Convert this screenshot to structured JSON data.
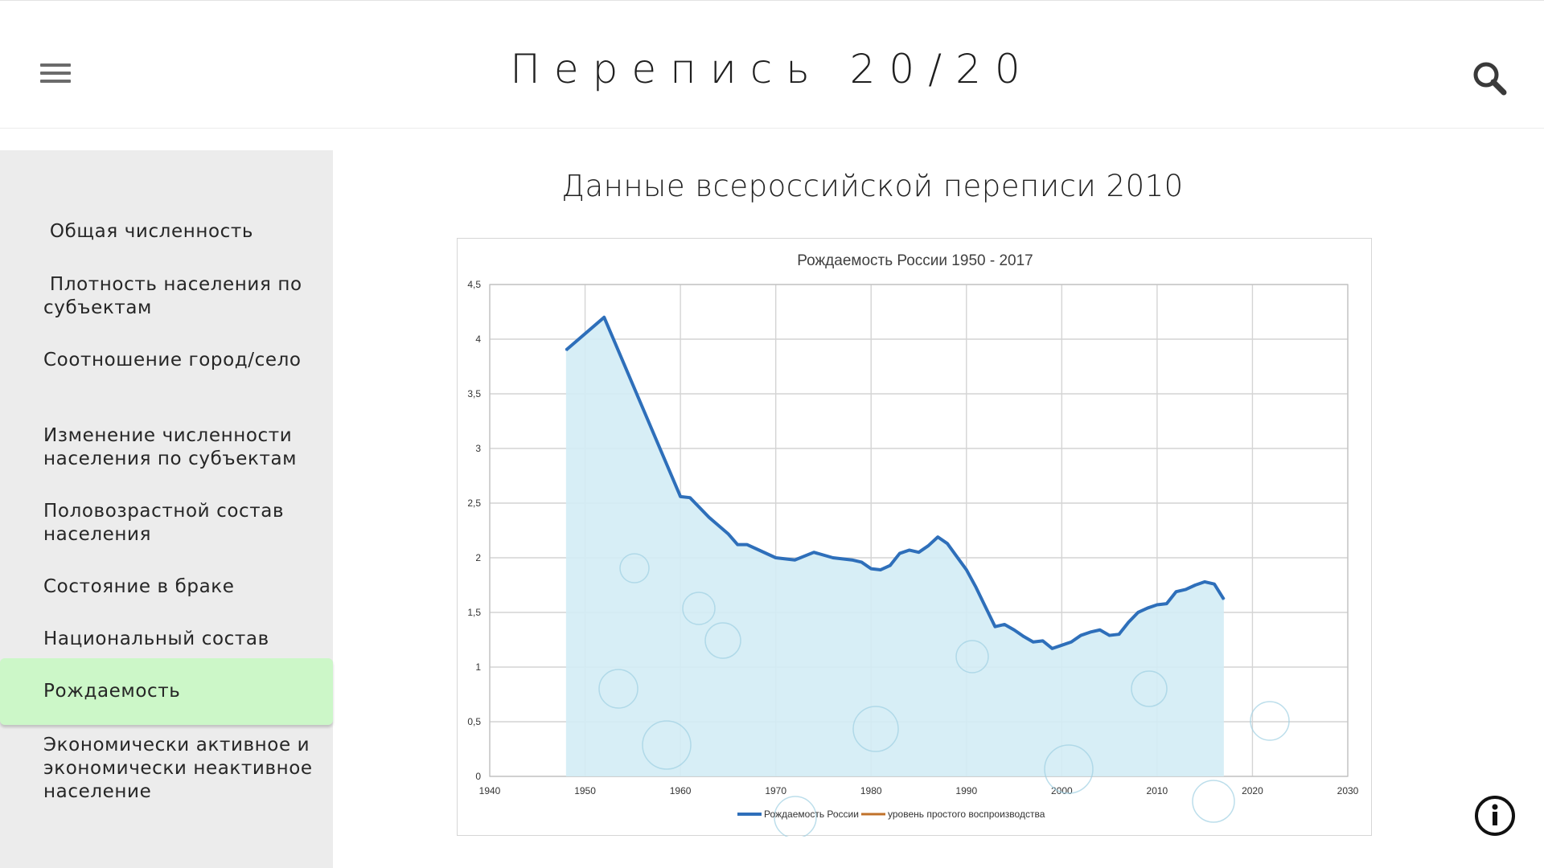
{
  "header": {
    "title": "Перепись 20/20",
    "menu_icon": "hamburger-menu-icon",
    "search_icon": "search-icon"
  },
  "sidebar": {
    "items": [
      {
        "label": " Общая численность",
        "active": false
      },
      {
        "label": " Плотность населения по субъектам",
        "active": false
      },
      {
        "label": "Соотношение город/село",
        "active": false
      },
      {
        "label": "Изменение численности населения по субъектам",
        "active": false
      },
      {
        "label": "Половозрастной состав населения",
        "active": false
      },
      {
        "label": "Состояние в браке",
        "active": false
      },
      {
        "label": "Национальный состав",
        "active": false
      },
      {
        "label": "Рождаемость",
        "active": true
      },
      {
        "label": "Экономически активное и экономически неактивное население",
        "active": false
      }
    ]
  },
  "main": {
    "heading": "Данные всероссийской переписи 2010"
  },
  "info_icon": "info-icon",
  "colors": {
    "active_nav": "#ccf7c8",
    "sidebar_bg": "#ececec",
    "series_line": "#2e6fba",
    "area_fill": "#d3ecf5",
    "replacement_line": "#c0712a"
  },
  "chart_data": {
    "type": "line",
    "title": "Рождаемость России  1950 - 2017",
    "xlim": [
      1940,
      2030
    ],
    "ylim": [
      0,
      4.5
    ],
    "x_ticks": [
      "1940",
      "1950",
      "1960",
      "1970",
      "1980",
      "1990",
      "2000",
      "2010",
      "2020",
      "2030"
    ],
    "y_ticks": [
      "0",
      "0,5",
      "1",
      "1,5",
      "2",
      "2,5",
      "3",
      "3,5",
      "4",
      "4,5"
    ],
    "grid": true,
    "legend_position": "bottom",
    "series": [
      {
        "name": "Рождаемость России",
        "color": "#2e6fba",
        "x": [
          1948,
          1952,
          1960,
          1961,
          1963,
          1965,
          1966,
          1967,
          1968,
          1970,
          1972,
          1974,
          1976,
          1978,
          1979,
          1980,
          1981,
          1982,
          1983,
          1984,
          1985,
          1986,
          1987,
          1988,
          1989,
          1990,
          1991,
          1992,
          1993,
          1994,
          1995,
          1996,
          1997,
          1998,
          1999,
          2000,
          2001,
          2002,
          2003,
          2004,
          2005,
          2006,
          2007,
          2008,
          2009,
          2010,
          2011,
          2012,
          2013,
          2014,
          2015,
          2016,
          2017
        ],
        "values": [
          3.9,
          4.2,
          2.56,
          2.55,
          2.37,
          2.22,
          2.12,
          2.12,
          2.08,
          2.0,
          1.98,
          2.05,
          2.0,
          1.98,
          1.96,
          1.9,
          1.89,
          1.93,
          2.04,
          2.07,
          2.05,
          2.11,
          2.19,
          2.13,
          2.01,
          1.89,
          1.73,
          1.55,
          1.37,
          1.39,
          1.34,
          1.28,
          1.23,
          1.24,
          1.17,
          1.2,
          1.23,
          1.29,
          1.32,
          1.34,
          1.29,
          1.3,
          1.41,
          1.5,
          1.54,
          1.57,
          1.58,
          1.69,
          1.71,
          1.75,
          1.78,
          1.76,
          1.62
        ]
      },
      {
        "name": "уровень простого воспроизводства",
        "color": "#c0712a",
        "x": [],
        "values": []
      }
    ]
  }
}
